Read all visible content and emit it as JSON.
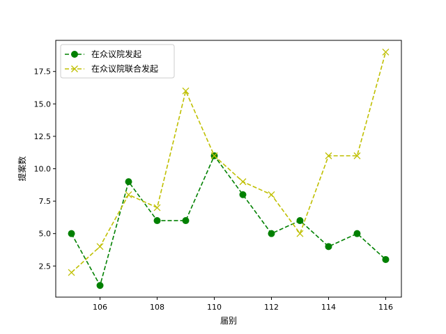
{
  "chart_data": {
    "type": "line",
    "title": "",
    "xlabel": "届别",
    "ylabel": "提案数",
    "x": [
      105,
      106,
      107,
      108,
      109,
      110,
      111,
      112,
      113,
      114,
      115,
      116
    ],
    "xlim": [
      104.45,
      116.55
    ],
    "ylim": [
      0.1,
      19.9
    ],
    "xticks": [
      106,
      108,
      110,
      112,
      114,
      116
    ],
    "yticks": [
      2.5,
      5.0,
      7.5,
      10.0,
      12.5,
      15.0,
      17.5
    ],
    "ytick_labels": [
      "2.5",
      "5.0",
      "7.5",
      "10.0",
      "12.5",
      "15.0",
      "17.5"
    ],
    "grid": false,
    "legend_position": "upper-left",
    "series": [
      {
        "name": "在众议院发起",
        "color": "#008000",
        "marker": "circle",
        "linestyle": "dashed",
        "values": [
          5,
          1,
          9,
          6,
          6,
          11,
          8,
          5,
          6,
          4,
          5,
          3
        ]
      },
      {
        "name": "在众议院联合发起",
        "color": "#bfbf00",
        "marker": "x",
        "linestyle": "dashed",
        "values": [
          2,
          4,
          8,
          7,
          16,
          11,
          9,
          8,
          5,
          11,
          11,
          19
        ]
      }
    ]
  }
}
